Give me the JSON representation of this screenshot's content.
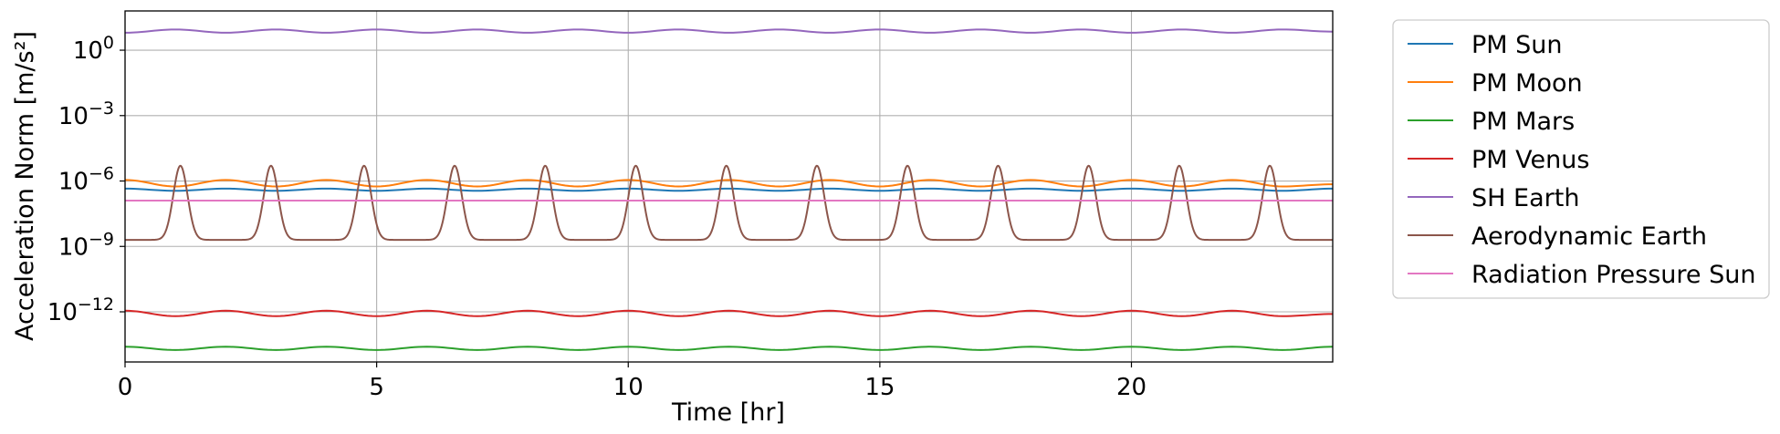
{
  "chart_data": {
    "type": "line",
    "xlabel": "Time [hr]",
    "ylabel": "Acceleration Norm [m/s²]",
    "x_range": [
      0,
      24
    ],
    "y_range_log10": [
      -14.3,
      1.8
    ],
    "y_scale": "log",
    "grid": true,
    "legend_position": "outside-right",
    "x_ticks": [
      {
        "value": 0,
        "label": "0"
      },
      {
        "value": 5,
        "label": "5"
      },
      {
        "value": 10,
        "label": "10"
      },
      {
        "value": 15,
        "label": "15"
      },
      {
        "value": 20,
        "label": "20"
      }
    ],
    "y_ticks": [
      {
        "exp": 0,
        "base": "10",
        "sup": "0"
      },
      {
        "exp": -3,
        "base": "10",
        "sup": "−3"
      },
      {
        "exp": -6,
        "base": "10",
        "sup": "−6"
      },
      {
        "exp": -9,
        "base": "10",
        "sup": "−9"
      },
      {
        "exp": -12,
        "base": "10",
        "sup": "−12"
      }
    ],
    "x": [
      0,
      1,
      2,
      3,
      4,
      5,
      6,
      7,
      8,
      9,
      10,
      11,
      12,
      13,
      14,
      15,
      16,
      17,
      18,
      19,
      20,
      21,
      22,
      23,
      24
    ],
    "series": [
      {
        "name": "PM Sun",
        "color": "#1f77b4",
        "log10_values": [
          -6.35,
          -6.45,
          -6.35,
          -6.45,
          -6.35,
          -6.45,
          -6.35,
          -6.45,
          -6.35,
          -6.45,
          -6.35,
          -6.45,
          -6.35,
          -6.45,
          -6.35,
          -6.45,
          -6.35,
          -6.45,
          -6.35,
          -6.45,
          -6.35,
          -6.45,
          -6.35,
          -6.45,
          -6.35
        ]
      },
      {
        "name": "PM Moon",
        "color": "#ff7f0e",
        "log10_values": [
          -5.95,
          -6.25,
          -5.95,
          -6.25,
          -5.95,
          -6.25,
          -5.95,
          -6.25,
          -5.95,
          -6.25,
          -5.95,
          -6.25,
          -5.95,
          -6.25,
          -5.95,
          -6.25,
          -5.95,
          -6.25,
          -5.95,
          -6.25,
          -5.95,
          -6.25,
          -5.95,
          -6.25,
          -6.15
        ]
      },
      {
        "name": "PM Mars",
        "color": "#2ca02c",
        "log10_values": [
          -13.6,
          -13.75,
          -13.6,
          -13.75,
          -13.6,
          -13.75,
          -13.6,
          -13.75,
          -13.6,
          -13.75,
          -13.6,
          -13.75,
          -13.6,
          -13.75,
          -13.6,
          -13.75,
          -13.6,
          -13.75,
          -13.6,
          -13.75,
          -13.6,
          -13.75,
          -13.6,
          -13.75,
          -13.6
        ]
      },
      {
        "name": "PM Venus",
        "color": "#d62728",
        "log10_values": [
          -11.95,
          -12.2,
          -11.95,
          -12.2,
          -11.95,
          -12.2,
          -11.95,
          -12.2,
          -11.95,
          -12.2,
          -11.95,
          -12.2,
          -11.95,
          -12.2,
          -11.95,
          -12.2,
          -11.95,
          -12.2,
          -11.95,
          -12.2,
          -11.95,
          -12.2,
          -11.95,
          -12.2,
          -12.1
        ]
      },
      {
        "name": "SH Earth",
        "color": "#9467bd",
        "log10_values": [
          0.8,
          0.95,
          0.8,
          0.95,
          0.8,
          0.95,
          0.8,
          0.95,
          0.8,
          0.95,
          0.8,
          0.95,
          0.8,
          0.95,
          0.8,
          0.95,
          0.8,
          0.95,
          0.8,
          0.95,
          0.8,
          0.95,
          0.8,
          0.95,
          0.85
        ]
      },
      {
        "name": "Aerodynamic Earth",
        "color": "#8c564b",
        "peak_times_hr": [
          1.1,
          2.9,
          4.75,
          6.55,
          8.35,
          10.15,
          11.95,
          13.75,
          15.55,
          17.35,
          19.15,
          20.95,
          22.75
        ],
        "peak_log10": -5.3,
        "baseline_log10": -8.7
      },
      {
        "name": "Radiation Pressure Sun",
        "color": "#e377c2",
        "log10_values": [
          -6.9,
          -6.9,
          -6.9,
          -6.9,
          -6.9,
          -6.9,
          -6.9,
          -6.9,
          -6.9,
          -6.9,
          -6.9,
          -6.9,
          -6.9,
          -6.9,
          -6.9,
          -6.9,
          -6.9,
          -6.9,
          -6.9,
          -6.9,
          -6.9,
          -6.9,
          -6.9,
          -6.9,
          -6.9
        ]
      }
    ]
  }
}
